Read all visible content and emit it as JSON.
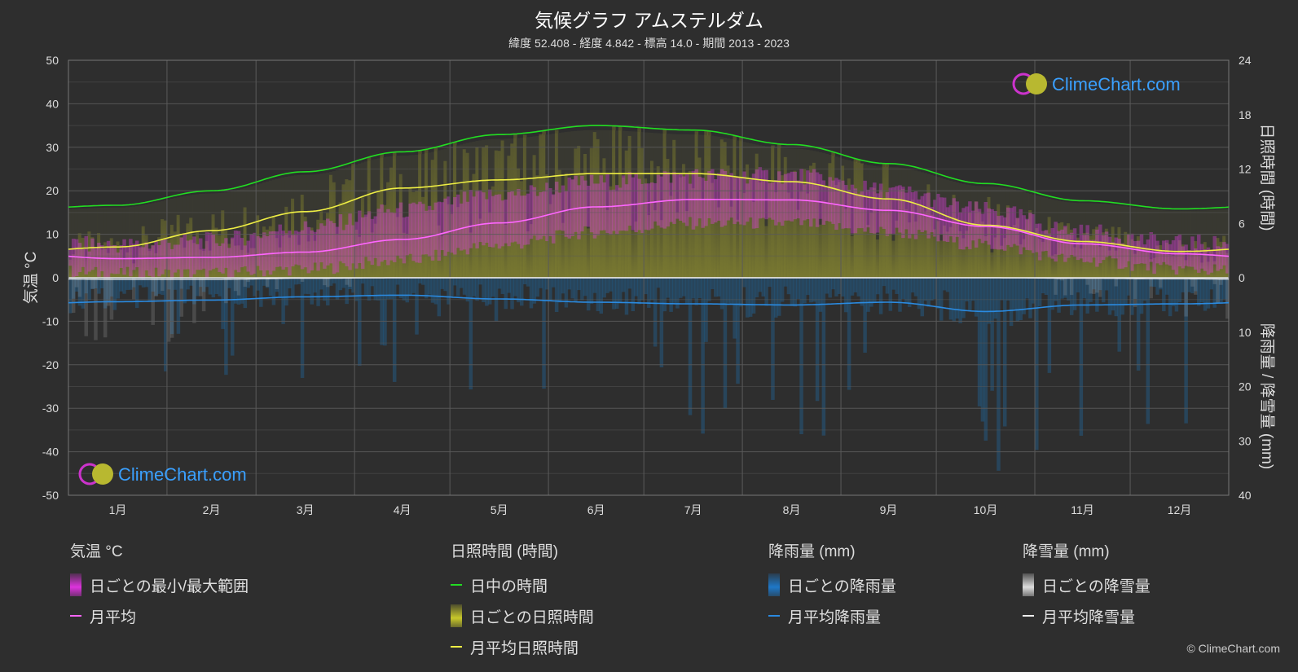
{
  "header": {
    "title": "気候グラフ アムステルダム",
    "subtitle": "緯度 52.408 - 経度 4.842 - 標高 14.0 - 期間 2013 - 2023"
  },
  "colors": {
    "background": "#2e2e2e",
    "temp_range": "#e040e0",
    "temp_mean": "#ff66ff",
    "daylight": "#22dd22",
    "sunshine_fill": "#b8b82a",
    "sunshine_mean": "#eeee44",
    "rain": "#1e6fb0",
    "rain_mean": "#2a8ae0",
    "snow": "#cccccc",
    "logo_text": "#3aa0ff"
  },
  "chart_data": {
    "type": "line",
    "months": [
      "1月",
      "2月",
      "3月",
      "4月",
      "5月",
      "6月",
      "7月",
      "8月",
      "9月",
      "10月",
      "11月",
      "12月"
    ],
    "axes": {
      "left": {
        "label": "気温 °C",
        "ticks": [
          "50",
          "40",
          "30",
          "20",
          "10",
          "0",
          "-10",
          "-20",
          "-30",
          "-40",
          "-50"
        ],
        "range": [
          -50,
          50
        ]
      },
      "right_top": {
        "label": "日照時間 (時間)",
        "ticks": [
          "24",
          "18",
          "12",
          "6",
          "0"
        ],
        "range": [
          0,
          24
        ]
      },
      "right_bottom": {
        "label": "降雨量 / 降雪量 (mm)",
        "ticks": [
          "10",
          "20",
          "30",
          "40"
        ],
        "range": [
          0,
          40
        ]
      }
    },
    "series": [
      {
        "name": "日中の時間",
        "unit": "h",
        "values": [
          8.0,
          9.6,
          11.7,
          13.9,
          15.8,
          16.8,
          16.3,
          14.7,
          12.6,
          10.4,
          8.5,
          7.6
        ]
      },
      {
        "name": "月平均日照時間",
        "unit": "h",
        "values": [
          3.4,
          5.2,
          7.3,
          9.9,
          10.8,
          11.5,
          11.5,
          10.6,
          8.7,
          5.8,
          4.0,
          2.9
        ]
      },
      {
        "name": "月平均",
        "unit": "°C",
        "values": [
          4.4,
          4.7,
          5.9,
          8.8,
          12.6,
          16.3,
          18.0,
          17.9,
          15.5,
          11.8,
          7.8,
          5.5
        ]
      },
      {
        "name": "月平均降雨量",
        "unit": "mm",
        "values": [
          4.4,
          4.1,
          3.5,
          3.2,
          3.9,
          4.5,
          4.8,
          5.0,
          4.5,
          6.2,
          5.0,
          4.8
        ]
      },
      {
        "name": "月平均降雪量",
        "unit": "mm",
        "values": [
          0.3,
          0.3,
          0.1,
          0.0,
          0.0,
          0.0,
          0.0,
          0.0,
          0.0,
          0.0,
          0.1,
          0.2
        ]
      }
    ],
    "temp_daily_range": {
      "min": [
        1.5,
        1.5,
        2.5,
        4.5,
        8.0,
        11.0,
        13.0,
        13.0,
        11.0,
        8.0,
        4.5,
        2.5
      ],
      "max": [
        7.0,
        8.0,
        11.0,
        15.0,
        18.5,
        21.5,
        23.0,
        23.0,
        19.5,
        15.0,
        10.0,
        7.5
      ]
    }
  },
  "logo": {
    "text": "ClimeChart.com"
  },
  "legend": {
    "groups": [
      {
        "heading": "気温 °C",
        "items": [
          {
            "label": "日ごとの最小/最大範囲",
            "kind": "block",
            "color": "#dd33dd"
          },
          {
            "label": "月平均",
            "kind": "line",
            "color": "#ff66ff"
          }
        ]
      },
      {
        "heading": "日照時間 (時間)",
        "items": [
          {
            "label": "日中の時間",
            "kind": "line",
            "color": "#22dd22"
          },
          {
            "label": "日ごとの日照時間",
            "kind": "block",
            "color": "#c8c82a"
          },
          {
            "label": "月平均日照時間",
            "kind": "line",
            "color": "#eeee44"
          }
        ]
      },
      {
        "heading": "降雨量 (mm)",
        "items": [
          {
            "label": "日ごとの降雨量",
            "kind": "block",
            "color": "#1e78c8"
          },
          {
            "label": "月平均降雨量",
            "kind": "line",
            "color": "#2a8ae0"
          }
        ]
      },
      {
        "heading": "降雪量 (mm)",
        "items": [
          {
            "label": "日ごとの降雪量",
            "kind": "block",
            "color": "#dddddd"
          },
          {
            "label": "月平均降雪量",
            "kind": "line",
            "color": "#eeeeee"
          }
        ]
      }
    ]
  },
  "footer": {
    "copyright": "© ClimeChart.com"
  }
}
